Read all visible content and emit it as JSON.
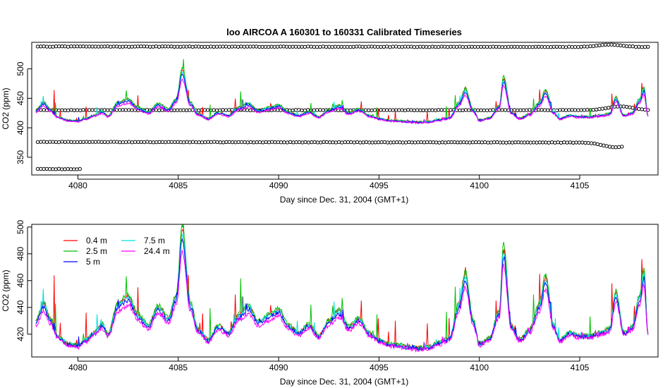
{
  "chart_data": [
    {
      "type": "scatter",
      "title": "loo   AIRCOA  A    160301  to  160331   Calibrated Timeseries",
      "xlabel": "Day since Dec. 31, 2004 (GMT+1)",
      "ylabel": "CO2 (ppm)",
      "xlim": [
        4077.7,
        4108.9
      ],
      "ylim": [
        320,
        545
      ],
      "xticks": [
        "4080",
        "4085",
        "4090",
        "4095",
        "4100",
        "4105"
      ],
      "yticks": [
        "350",
        "400",
        "450",
        "500"
      ],
      "grid": false,
      "series_colors": [
        "#ff0000",
        "#00c000",
        "#0000ff",
        "#00e0e0",
        "#ff00ff"
      ],
      "calibration_series": [
        {
          "y_start": 538,
          "y_end": 537,
          "x_start": 4078.0,
          "x_end": 4108.4,
          "bump_x": 4106.5,
          "bump_y": 542
        },
        {
          "y_start": 430,
          "y_end": 430,
          "x_start": 4078.0,
          "x_end": 4108.4,
          "bump_x": 4107.0,
          "bump_y": 436
        },
        {
          "y_start": 376,
          "y_end": 375,
          "x_start": 4078.0,
          "x_end": 4107.1,
          "bump_x": 4106.8,
          "bump_y": 368
        },
        {
          "y_start": 330,
          "y_end": 330,
          "x_start": 4078.0,
          "x_end": 4080.1
        }
      ]
    },
    {
      "type": "line",
      "xlabel": "Day since Dec. 31, 2004 (GMT+1)",
      "ylabel": "CO2 (ppm)",
      "xlim": [
        4077.7,
        4108.9
      ],
      "ylim": [
        403,
        502
      ],
      "xticks": [
        "4080",
        "4085",
        "4090",
        "4095",
        "4100",
        "4105"
      ],
      "yticks": [
        "420",
        "440",
        "460",
        "480",
        "500"
      ],
      "grid": false,
      "legend_position": "top-left",
      "series": [
        {
          "name": "0.4 m",
          "color": "#ff0000"
        },
        {
          "name": "2.5 m",
          "color": "#00c000"
        },
        {
          "name": "5 m",
          "color": "#0000ff"
        },
        {
          "name": "7.5 m",
          "color": "#00e0e0"
        },
        {
          "name": "24.4 m",
          "color": "#ff00ff"
        }
      ],
      "baseline": {
        "x": [
          4077.9,
          4078.3,
          4078.6,
          4079.0,
          4079.5,
          4080.0,
          4080.4,
          4080.8,
          4081.2,
          4081.5,
          4082.0,
          4082.5,
          4083.0,
          4083.5,
          4084.0,
          4084.5,
          4084.9,
          4085.2,
          4085.6,
          4086.0,
          4086.5,
          4087.0,
          4087.5,
          4088.0,
          4088.5,
          4089.0,
          4089.5,
          4090.0,
          4090.5,
          4091.0,
          4091.5,
          4092.0,
          4092.5,
          4093.0,
          4093.5,
          4094.0,
          4094.5,
          4095.0,
          4095.5,
          4096.0,
          4096.5,
          4097.0,
          4097.5,
          4098.0,
          4098.5,
          4099.0,
          4099.3,
          4099.7,
          4100.0,
          4100.5,
          4101.0,
          4101.2,
          4101.6,
          4102.0,
          4102.5,
          4103.0,
          4103.3,
          4103.7,
          4104.0,
          4104.5,
          4105.0,
          4105.5,
          4106.0,
          4106.5,
          4106.8,
          4107.2,
          4107.6,
          4108.0,
          4108.2,
          4108.4
        ],
        "y": [
          428,
          440,
          430,
          418,
          412,
          411,
          415,
          420,
          426,
          419,
          440,
          445,
          432,
          425,
          438,
          430,
          445,
          490,
          440,
          422,
          415,
          425,
          420,
          432,
          438,
          428,
          432,
          436,
          425,
          420,
          426,
          418,
          428,
          435,
          424,
          430,
          420,
          415,
          412,
          411,
          410,
          409,
          410,
          413,
          416,
          440,
          460,
          428,
          412,
          416,
          435,
          478,
          425,
          415,
          422,
          440,
          458,
          425,
          415,
          420,
          418,
          418,
          420,
          423,
          448,
          420,
          424,
          445,
          462,
          420
        ]
      }
    }
  ]
}
